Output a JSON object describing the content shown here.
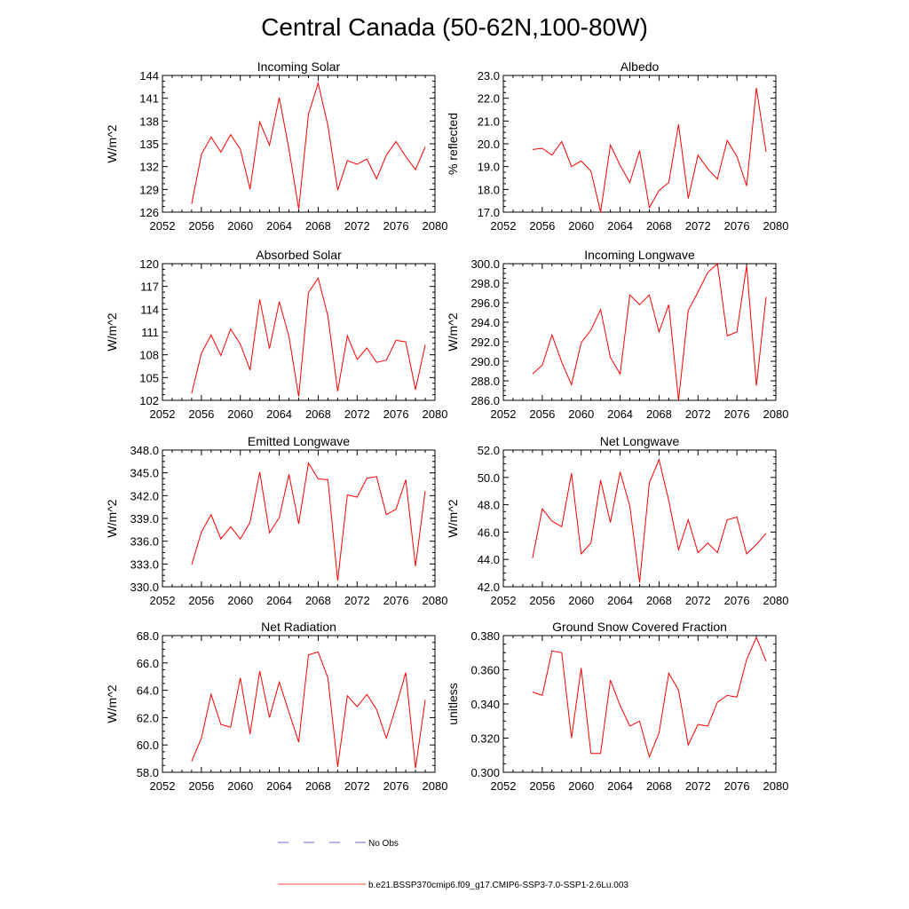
{
  "title": "Central Canada (50-62N,100-80W)",
  "legend": {
    "obs_label": "No Obs",
    "obs_color": "#3a3ad6",
    "model_label": "b.e21.BSSP370cmip6.f09_g17.CMIP6-SSP3-7.0-SSP1-2.6Lu.003",
    "model_color": "#ff0000"
  },
  "chart_data": [
    {
      "type": "line",
      "title": "Incoming Solar",
      "ylabel": "W/m^2",
      "xlabel": "",
      "xlim": [
        2052,
        2080
      ],
      "ylim": [
        126,
        144
      ],
      "xticks": [
        "2052",
        "2056",
        "2060",
        "2064",
        "2068",
        "2072",
        "2076",
        "2080"
      ],
      "yticks": [
        "126",
        "129",
        "132",
        "135",
        "138",
        "141",
        "144"
      ],
      "x": [
        2055,
        2056,
        2057,
        2058,
        2059,
        2060,
        2061,
        2062,
        2063,
        2064,
        2065,
        2066,
        2067,
        2068,
        2069,
        2070,
        2071,
        2072,
        2073,
        2074,
        2075,
        2076,
        2077,
        2078,
        2079
      ],
      "series": [
        {
          "values": [
            127.1,
            133.6,
            135.9,
            133.9,
            136.2,
            134.3,
            129.0,
            137.9,
            134.8,
            141.1,
            134.3,
            126.4,
            138.9,
            143.0,
            137.4,
            128.9,
            132.8,
            132.3,
            133.0,
            130.4,
            133.5,
            135.3,
            133.3,
            131.6,
            134.6
          ]
        }
      ]
    },
    {
      "type": "line",
      "title": "Albedo",
      "ylabel": "% reflected",
      "xlabel": "",
      "xlim": [
        2052,
        2080
      ],
      "ylim": [
        17.0,
        23.0
      ],
      "xticks": [
        "2052",
        "2056",
        "2060",
        "2064",
        "2068",
        "2072",
        "2076",
        "2080"
      ],
      "yticks": [
        "17.0",
        "18.0",
        "19.0",
        "20.0",
        "21.0",
        "22.0",
        "23.0"
      ],
      "x": [
        2055,
        2056,
        2057,
        2058,
        2059,
        2060,
        2061,
        2062,
        2063,
        2064,
        2065,
        2066,
        2067,
        2068,
        2069,
        2070,
        2071,
        2072,
        2073,
        2074,
        2075,
        2076,
        2077,
        2078,
        2079
      ],
      "series": [
        {
          "values": [
            19.75,
            19.8,
            19.5,
            20.1,
            19.0,
            19.25,
            18.8,
            17.0,
            19.95,
            19.05,
            18.3,
            19.7,
            17.2,
            17.95,
            18.3,
            20.85,
            17.6,
            19.5,
            18.9,
            18.45,
            20.15,
            19.45,
            18.15,
            22.45,
            19.65
          ]
        }
      ]
    },
    {
      "type": "line",
      "title": "Absorbed Solar",
      "ylabel": "W/m^2",
      "xlabel": "",
      "xlim": [
        2052,
        2080
      ],
      "ylim": [
        102,
        120
      ],
      "xticks": [
        "2052",
        "2056",
        "2060",
        "2064",
        "2068",
        "2072",
        "2076",
        "2080"
      ],
      "yticks": [
        "102",
        "105",
        "108",
        "111",
        "114",
        "117",
        "120"
      ],
      "x": [
        2055,
        2056,
        2057,
        2058,
        2059,
        2060,
        2061,
        2062,
        2063,
        2064,
        2065,
        2066,
        2067,
        2068,
        2069,
        2070,
        2071,
        2072,
        2073,
        2074,
        2075,
        2076,
        2077,
        2078,
        2079
      ],
      "series": [
        {
          "values": [
            102.9,
            108.2,
            110.6,
            107.9,
            111.4,
            109.4,
            106.0,
            115.3,
            108.8,
            115.0,
            110.4,
            102.5,
            116.2,
            118.1,
            113.1,
            103.2,
            110.5,
            107.4,
            108.9,
            107.0,
            107.3,
            109.9,
            109.7,
            103.4,
            109.3
          ]
        }
      ]
    },
    {
      "type": "line",
      "title": "Incoming Longwave",
      "ylabel": "W/m^2",
      "xlabel": "",
      "xlim": [
        2052,
        2080
      ],
      "ylim": [
        286.0,
        300.0
      ],
      "xticks": [
        "2052",
        "2056",
        "2060",
        "2064",
        "2068",
        "2072",
        "2076",
        "2080"
      ],
      "yticks": [
        "286.0",
        "288.0",
        "290.0",
        "292.0",
        "294.0",
        "296.0",
        "298.0",
        "300.0"
      ],
      "x": [
        2055,
        2056,
        2057,
        2058,
        2059,
        2060,
        2061,
        2062,
        2063,
        2064,
        2065,
        2066,
        2067,
        2068,
        2069,
        2070,
        2071,
        2072,
        2073,
        2074,
        2075,
        2076,
        2077,
        2078,
        2079
      ],
      "series": [
        {
          "values": [
            288.7,
            289.6,
            292.7,
            289.9,
            287.6,
            291.9,
            293.2,
            295.3,
            290.4,
            288.7,
            296.8,
            295.8,
            296.8,
            293.0,
            295.8,
            286.0,
            295.2,
            297.1,
            299.1,
            300.0,
            292.6,
            293.0,
            299.8,
            287.5,
            296.6
          ]
        }
      ]
    },
    {
      "type": "line",
      "title": "Emitted Longwave",
      "ylabel": "W/m^2",
      "xlabel": "",
      "xlim": [
        2052,
        2080
      ],
      "ylim": [
        330.0,
        348.0
      ],
      "xticks": [
        "2052",
        "2056",
        "2060",
        "2064",
        "2068",
        "2072",
        "2076",
        "2080"
      ],
      "yticks": [
        "330.0",
        "333.0",
        "336.0",
        "339.0",
        "342.0",
        "345.0",
        "348.0"
      ],
      "x": [
        2055,
        2056,
        2057,
        2058,
        2059,
        2060,
        2061,
        2062,
        2063,
        2064,
        2065,
        2066,
        2067,
        2068,
        2069,
        2070,
        2071,
        2072,
        2073,
        2074,
        2075,
        2076,
        2077,
        2078,
        2079
      ],
      "series": [
        {
          "values": [
            332.9,
            337.2,
            339.5,
            336.3,
            337.9,
            336.3,
            338.5,
            345.1,
            337.1,
            339.1,
            344.8,
            338.3,
            346.3,
            344.2,
            344.1,
            330.8,
            342.1,
            341.8,
            344.3,
            344.5,
            339.5,
            340.2,
            344.1,
            332.7,
            342.6
          ]
        }
      ]
    },
    {
      "type": "line",
      "title": "Net Longwave",
      "ylabel": "W/m^2",
      "xlabel": "",
      "xlim": [
        2052,
        2080
      ],
      "ylim": [
        42.0,
        52.0
      ],
      "xticks": [
        "2052",
        "2056",
        "2060",
        "2064",
        "2068",
        "2072",
        "2076",
        "2080"
      ],
      "yticks": [
        "42.0",
        "44.0",
        "46.0",
        "48.0",
        "50.0",
        "52.0"
      ],
      "x": [
        2055,
        2056,
        2057,
        2058,
        2059,
        2060,
        2061,
        2062,
        2063,
        2064,
        2065,
        2066,
        2067,
        2068,
        2069,
        2070,
        2071,
        2072,
        2073,
        2074,
        2075,
        2076,
        2077,
        2078,
        2079
      ],
      "series": [
        {
          "values": [
            44.1,
            47.7,
            46.8,
            46.4,
            50.3,
            44.4,
            45.2,
            49.8,
            46.7,
            50.4,
            47.9,
            42.3,
            49.6,
            51.3,
            48.3,
            44.7,
            46.9,
            44.5,
            45.2,
            44.5,
            46.9,
            47.1,
            44.4,
            45.1,
            45.9
          ]
        }
      ]
    },
    {
      "type": "line",
      "title": "Net Radiation",
      "ylabel": "W/m^2",
      "xlabel": "",
      "xlim": [
        2052,
        2080
      ],
      "ylim": [
        58.0,
        68.0
      ],
      "xticks": [
        "2052",
        "2056",
        "2060",
        "2064",
        "2068",
        "2072",
        "2076",
        "2080"
      ],
      "yticks": [
        "58.0",
        "60.0",
        "62.0",
        "64.0",
        "66.0",
        "68.0"
      ],
      "x": [
        2055,
        2056,
        2057,
        2058,
        2059,
        2060,
        2061,
        2062,
        2063,
        2064,
        2065,
        2066,
        2067,
        2068,
        2069,
        2070,
        2071,
        2072,
        2073,
        2074,
        2075,
        2076,
        2077,
        2078,
        2079
      ],
      "series": [
        {
          "values": [
            58.8,
            60.5,
            63.7,
            61.5,
            61.3,
            64.9,
            60.8,
            65.4,
            62.0,
            64.6,
            62.4,
            60.2,
            66.6,
            66.8,
            64.9,
            58.4,
            63.6,
            62.8,
            63.7,
            62.6,
            60.5,
            62.8,
            65.3,
            58.3,
            63.3
          ]
        }
      ]
    },
    {
      "type": "line",
      "title": "Ground Snow Covered Fraction",
      "ylabel": "unitless",
      "xlabel": "",
      "xlim": [
        2052,
        2080
      ],
      "ylim": [
        0.3,
        0.38
      ],
      "xticks": [
        "2052",
        "2056",
        "2060",
        "2064",
        "2068",
        "2072",
        "2076",
        "2080"
      ],
      "yticks": [
        "0.300",
        "0.320",
        "0.340",
        "0.360",
        "0.380"
      ],
      "x": [
        2055,
        2056,
        2057,
        2058,
        2059,
        2060,
        2061,
        2062,
        2063,
        2064,
        2065,
        2066,
        2067,
        2068,
        2069,
        2070,
        2071,
        2072,
        2073,
        2074,
        2075,
        2076,
        2077,
        2078,
        2079
      ],
      "series": [
        {
          "values": [
            0.347,
            0.345,
            0.371,
            0.37,
            0.32,
            0.361,
            0.311,
            0.311,
            0.354,
            0.339,
            0.327,
            0.33,
            0.309,
            0.323,
            0.358,
            0.348,
            0.316,
            0.328,
            0.327,
            0.341,
            0.345,
            0.344,
            0.366,
            0.379,
            0.365
          ]
        }
      ]
    }
  ]
}
